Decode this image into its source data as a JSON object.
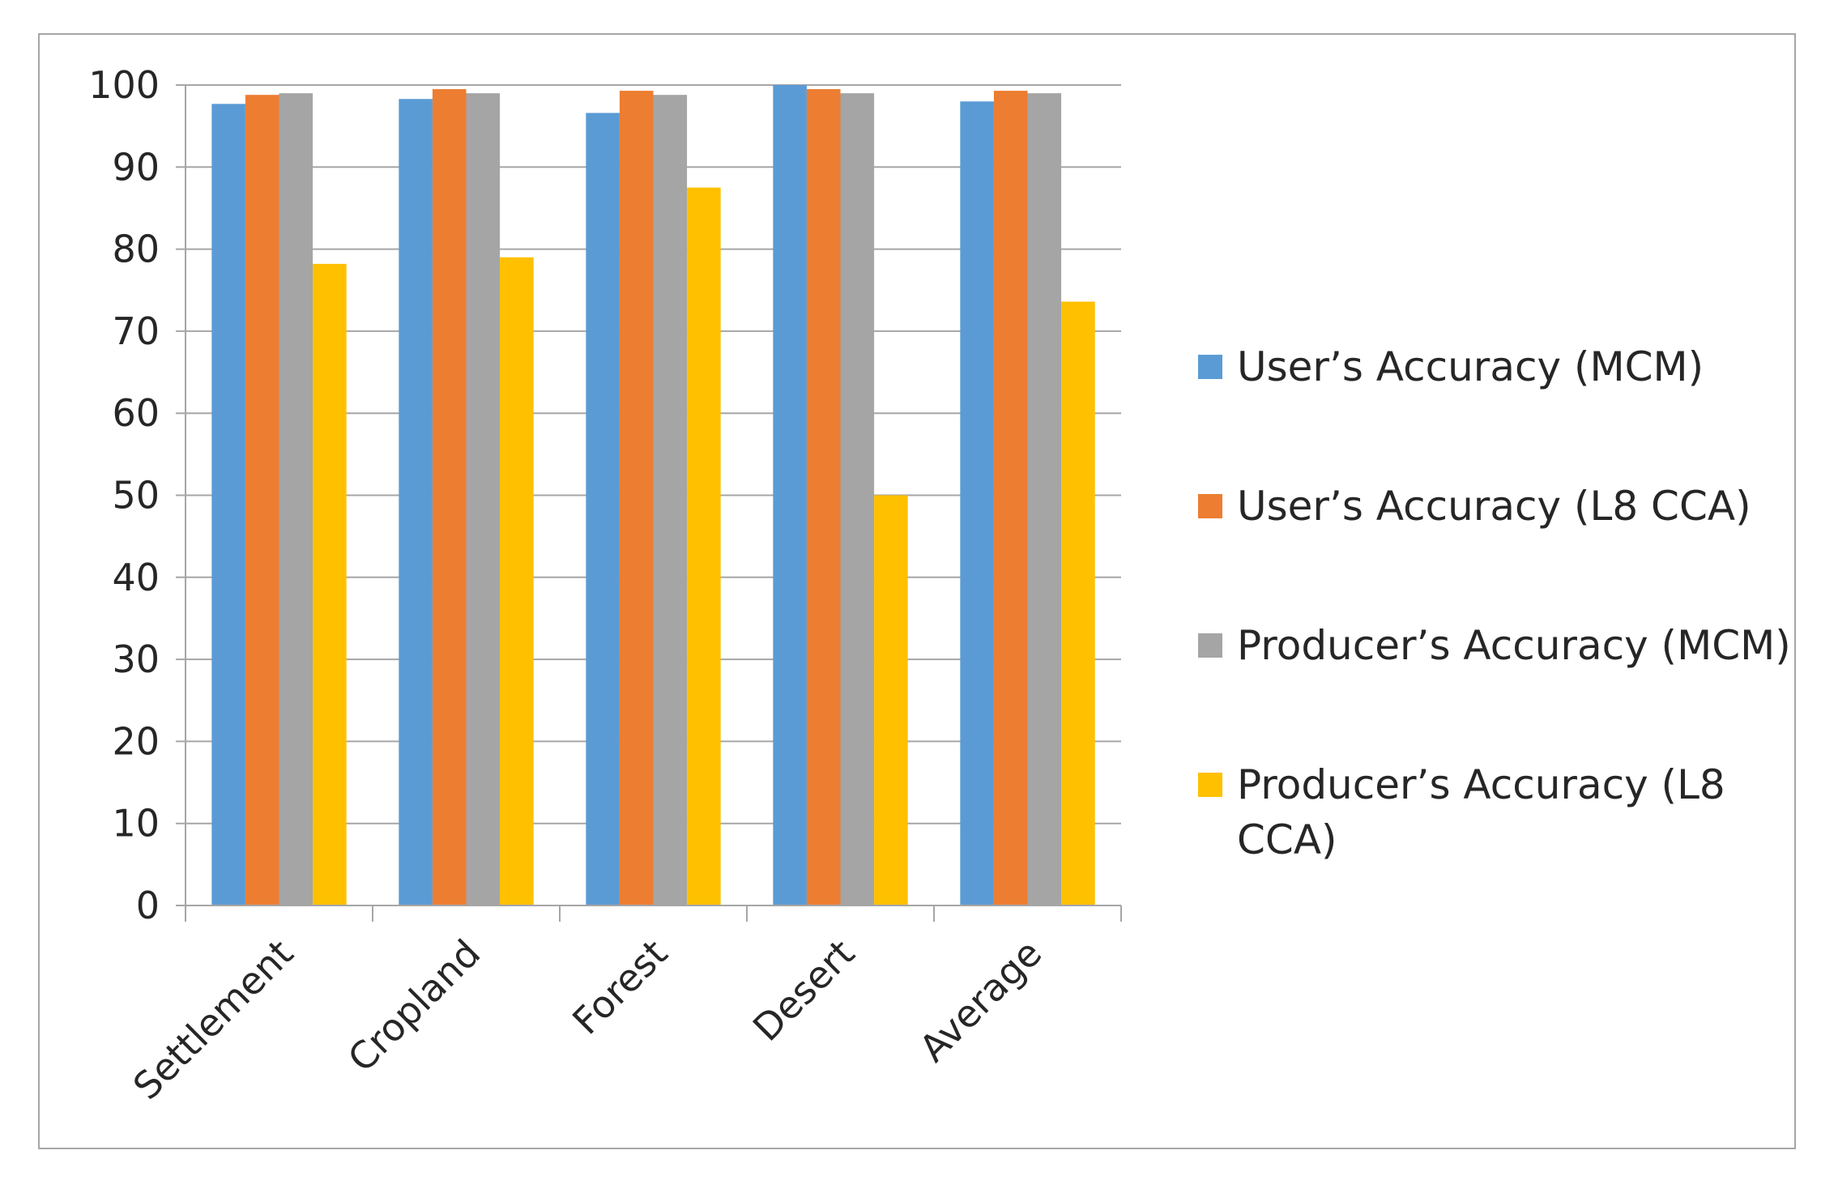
{
  "chart_data": {
    "type": "bar",
    "title": "",
    "xlabel": "",
    "ylabel": "",
    "ylim": [
      0,
      100
    ],
    "yticks": [
      0,
      10,
      20,
      30,
      40,
      50,
      60,
      70,
      80,
      90,
      100
    ],
    "grid": true,
    "legend_position": "right",
    "categories": [
      "Settlement",
      "Cropland",
      "Forest",
      "Desert",
      "Average"
    ],
    "series": [
      {
        "name": "User’s Accuracy (MCM)",
        "color": "#5b9bd5",
        "values": [
          97.7,
          98.3,
          96.6,
          100.0,
          98.0
        ]
      },
      {
        "name": "User’s Accuracy (L8 CCA)",
        "color": "#ed7d31",
        "values": [
          98.8,
          99.5,
          99.3,
          99.5,
          99.3
        ]
      },
      {
        "name": "Producer’s Accuracy (MCM)",
        "color": "#a5a5a5",
        "values": [
          99.0,
          99.0,
          98.8,
          99.0,
          99.0
        ]
      },
      {
        "name": "Producer’s Accuracy (L8 CCA)",
        "color": "#ffc000",
        "values": [
          78.2,
          79.0,
          87.5,
          50.0,
          73.6
        ]
      }
    ]
  }
}
